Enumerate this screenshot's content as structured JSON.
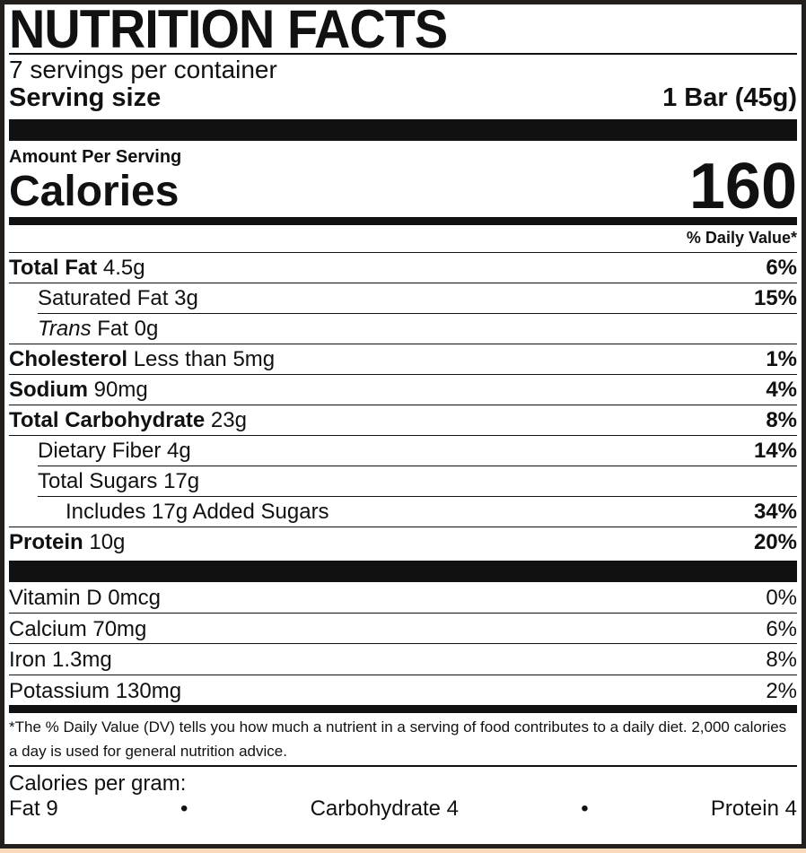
{
  "title": "NUTRITION FACTS",
  "servings_per_container": "7 servings per container",
  "serving_size": {
    "label": "Serving size",
    "value": "1 Bar (45g)"
  },
  "amount_per_serving": "Amount Per Serving",
  "calories": {
    "label": "Calories",
    "value": "160"
  },
  "daily_value_header": "% Daily Value*",
  "nutrients": [
    {
      "name": "Total Fat",
      "amount": "4.5g",
      "dv": "6%",
      "indent": 0,
      "bold": true
    },
    {
      "name": "Saturated Fat",
      "amount": "3g",
      "dv": "15%",
      "indent": 1,
      "bold": false
    },
    {
      "name": "Trans",
      "name_suffix": "Fat",
      "amount": "0g",
      "dv": "",
      "indent": 1,
      "bold": false,
      "italic_prefix": true
    },
    {
      "name": "Cholesterol",
      "amount": "Less than 5mg",
      "dv": "1%",
      "indent": 0,
      "bold": true
    },
    {
      "name": "Sodium",
      "amount": "90mg",
      "dv": "4%",
      "indent": 0,
      "bold": true
    },
    {
      "name": "Total Carbohydrate",
      "amount": "23g",
      "dv": "8%",
      "indent": 0,
      "bold": true
    },
    {
      "name": "Dietary Fiber",
      "amount": "4g",
      "dv": "14%",
      "indent": 1,
      "bold": false
    },
    {
      "name": "Total Sugars",
      "amount": "17g",
      "dv": "",
      "indent": 1,
      "bold": false
    },
    {
      "name": "Includes 17g Added Sugars",
      "amount": "",
      "dv": "34%",
      "indent": 2,
      "bold": false
    },
    {
      "name": "Protein",
      "amount": "10g",
      "dv": "20%",
      "indent": 0,
      "bold": true
    }
  ],
  "vitamins": [
    {
      "label": "Vitamin D 0mcg",
      "dv": "0%"
    },
    {
      "label": "Calcium 70mg",
      "dv": "6%"
    },
    {
      "label": "Iron 1.3mg",
      "dv": "8%"
    },
    {
      "label": "Potassium 130mg",
      "dv": "2%"
    }
  ],
  "footnote": "*The % Daily Value (DV) tells you how much a nutrient in a serving of food contributes to a daily diet. 2,000 calories a day is used for general nutrition advice.",
  "calories_per_gram": {
    "label": "Calories per gram:",
    "fat": "Fat 9",
    "separator": "•",
    "carbohydrate": "Carbohydrate 4",
    "protein": "Protein 4"
  },
  "colors": {
    "ink": "#111111",
    "border": "#231f1c",
    "background_strip": "#f8d9b8"
  }
}
